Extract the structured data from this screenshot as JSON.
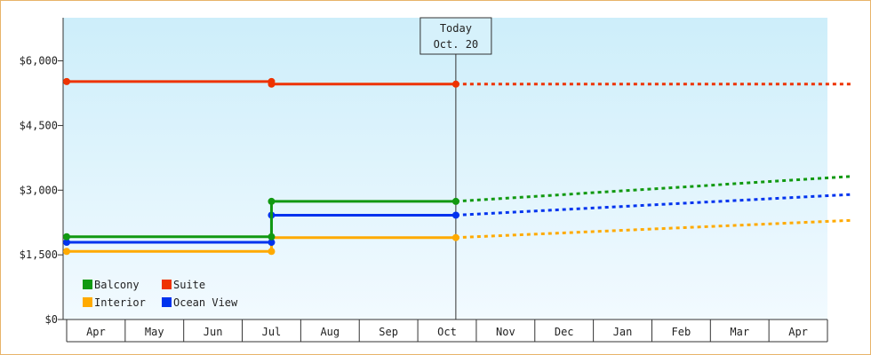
{
  "chart_data": {
    "type": "line",
    "title": "",
    "xlabel": "",
    "ylabel": "",
    "y_axis": {
      "min": 0,
      "max": 7000,
      "ticks": [
        0,
        1500,
        3000,
        4500,
        6000
      ],
      "tick_labels": [
        "$0",
        "$1,500",
        "$3,000",
        "$4,500",
        "$6,000"
      ]
    },
    "months": [
      "Apr",
      "May",
      "Jun",
      "Jul",
      "Aug",
      "Sep",
      "Oct",
      "Nov",
      "Dec",
      "Jan",
      "Feb",
      "Mar",
      "Apr"
    ],
    "x_domain": [
      0,
      13
    ],
    "today": {
      "label": "Today",
      "date": "Oct. 20",
      "x": 6.65
    },
    "change_x": 3.5,
    "forecast_end_x": 13.4,
    "series": [
      {
        "name": "Balcony",
        "color": "#119911",
        "points": [
          [
            0,
            1920
          ],
          [
            3.5,
            1920
          ],
          [
            3.5,
            2740
          ],
          [
            6.65,
            2740
          ]
        ],
        "markers": [
          [
            0,
            1920
          ],
          [
            3.5,
            1920
          ],
          [
            3.5,
            2740
          ],
          [
            6.65,
            2740
          ]
        ],
        "forecast_end": 3320
      },
      {
        "name": "Suite",
        "color": "#ee3300",
        "points": [
          [
            0,
            5520
          ],
          [
            3.5,
            5520
          ],
          [
            3.5,
            5460
          ],
          [
            6.65,
            5460
          ]
        ],
        "markers": [
          [
            0,
            5520
          ],
          [
            3.5,
            5520
          ],
          [
            3.5,
            5460
          ],
          [
            6.65,
            5460
          ]
        ],
        "forecast_end": 5460
      },
      {
        "name": "Interior",
        "color": "#ffaa00",
        "points": [
          [
            0,
            1580
          ],
          [
            3.5,
            1580
          ],
          [
            3.5,
            1900
          ],
          [
            6.65,
            1900
          ]
        ],
        "markers": [
          [
            0,
            1580
          ],
          [
            3.5,
            1580
          ],
          [
            6.65,
            1900
          ]
        ],
        "forecast_end": 2300
      },
      {
        "name": "Ocean View",
        "color": "#0033ee",
        "points": [
          [
            0,
            1790
          ],
          [
            3.5,
            1790
          ],
          [
            3.5,
            2420
          ],
          [
            6.65,
            2420
          ]
        ],
        "markers": [
          [
            0,
            1790
          ],
          [
            3.5,
            1790
          ],
          [
            3.5,
            2420
          ],
          [
            6.65,
            2420
          ]
        ],
        "forecast_end": 2900
      }
    ],
    "legend": {
      "position": "bottom-left",
      "order": [
        "Balcony",
        "Suite",
        "Interior",
        "Ocean View"
      ]
    },
    "grid": false,
    "background": {
      "top": "#cdeefa",
      "bottom": "#f2faff"
    }
  }
}
